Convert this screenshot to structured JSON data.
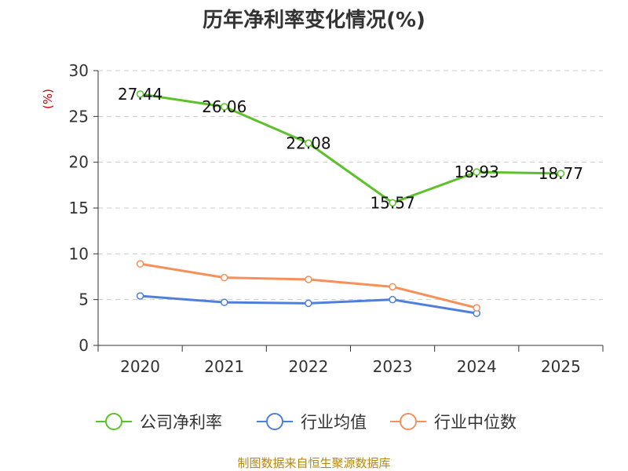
{
  "chart_data": {
    "type": "line",
    "title": "历年净利率变化情况(%)",
    "ylabel": "(%)",
    "xlabel": "",
    "categories": [
      "2020",
      "2021",
      "2022",
      "2023",
      "2024",
      "2025"
    ],
    "ylim": [
      0,
      30
    ],
    "yticks": [
      0,
      5,
      10,
      15,
      20,
      25,
      30
    ],
    "grid": true,
    "legend_position": "bottom",
    "series": [
      {
        "name": "公司净利率",
        "color": "#5cc12a",
        "values": [
          27.44,
          26.06,
          22.08,
          15.57,
          18.93,
          18.77
        ],
        "labels": [
          "27.44",
          "26.06",
          "22.08",
          "15.57",
          "18.93",
          "18.77"
        ]
      },
      {
        "name": "行业均值",
        "color": "#4f7fdc",
        "values": [
          5.4,
          4.7,
          4.6,
          5.0,
          3.5,
          null
        ]
      },
      {
        "name": "行业中位数",
        "color": "#f5905a",
        "values": [
          8.9,
          7.4,
          7.2,
          6.4,
          4.1,
          null
        ]
      }
    ]
  },
  "source": "制图数据来自恒生聚源数据库"
}
